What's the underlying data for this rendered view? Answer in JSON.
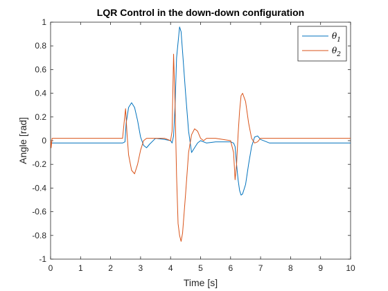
{
  "chart_data": {
    "type": "line",
    "title": "LQR Control in the down-down configuration",
    "xlabel": "Time [s]",
    "ylabel": "Angle [rad]",
    "xlim": [
      0,
      10
    ],
    "ylim": [
      -1,
      1
    ],
    "xticks": [
      0,
      1,
      2,
      3,
      4,
      5,
      6,
      7,
      8,
      9,
      10
    ],
    "xtick_labels": [
      "0",
      "1",
      "2",
      "3",
      "4",
      "5",
      "6",
      "7",
      "8",
      "9",
      "10"
    ],
    "yticks": [
      -1,
      -0.8,
      -0.6,
      -0.4,
      -0.2,
      0,
      0.2,
      0.4,
      0.6,
      0.8,
      1
    ],
    "ytick_labels": [
      "-1",
      "-0.8",
      "-0.6",
      "-0.4",
      "-0.2",
      "0",
      "0.2",
      "0.4",
      "0.6",
      "0.8",
      "1"
    ],
    "grid": false,
    "legend_position": "top-right",
    "series": [
      {
        "name": "θ1",
        "label_base": "θ",
        "label_sub": "1",
        "color": "#0072BD",
        "x": [
          0,
          0.02,
          0.3,
          1.0,
          2.0,
          2.4,
          2.48,
          2.52,
          2.6,
          2.7,
          2.8,
          2.9,
          3.0,
          3.1,
          3.2,
          3.3,
          3.5,
          3.8,
          4.0,
          4.05,
          4.1,
          4.15,
          4.2,
          4.3,
          4.35,
          4.4,
          4.5,
          4.6,
          4.7,
          4.8,
          4.9,
          5.0,
          5.2,
          5.5,
          6.0,
          6.1,
          6.15,
          6.2,
          6.25,
          6.3,
          6.35,
          6.4,
          6.5,
          6.6,
          6.7,
          6.8,
          6.9,
          7.0,
          7.3,
          8.0,
          9.0,
          10.0
        ],
        "y": [
          0.0,
          -0.02,
          -0.02,
          -0.02,
          -0.02,
          -0.02,
          -0.01,
          0.15,
          0.28,
          0.32,
          0.28,
          0.17,
          0.03,
          -0.04,
          -0.06,
          -0.03,
          0.02,
          0.01,
          0.0,
          -0.02,
          0.04,
          0.3,
          0.7,
          0.96,
          0.92,
          0.75,
          0.4,
          0.08,
          -0.1,
          -0.06,
          -0.02,
          0.0,
          -0.02,
          -0.01,
          -0.01,
          -0.02,
          -0.05,
          -0.2,
          -0.33,
          -0.42,
          -0.46,
          -0.45,
          -0.37,
          -0.2,
          -0.05,
          0.03,
          0.04,
          0.01,
          -0.02,
          -0.02,
          -0.02,
          -0.02
        ]
      },
      {
        "name": "θ2",
        "label_base": "θ",
        "label_sub": "2",
        "color": "#D95319",
        "x": [
          0,
          0.02,
          0.05,
          0.1,
          0.3,
          1.0,
          2.0,
          2.4,
          2.45,
          2.5,
          2.55,
          2.6,
          2.7,
          2.8,
          2.9,
          3.0,
          3.1,
          3.2,
          3.3,
          3.5,
          3.8,
          4.0,
          4.05,
          4.1,
          4.15,
          4.2,
          4.25,
          4.3,
          4.35,
          4.4,
          4.5,
          4.6,
          4.7,
          4.8,
          4.9,
          5.0,
          5.1,
          5.2,
          5.5,
          6.0,
          6.1,
          6.15,
          6.2,
          6.25,
          6.3,
          6.35,
          6.4,
          6.5,
          6.6,
          6.7,
          6.8,
          6.9,
          7.0,
          7.3,
          8.0,
          9.0,
          10.0
        ],
        "y": [
          0.0,
          -0.06,
          0.02,
          0.02,
          0.02,
          0.02,
          0.02,
          0.02,
          0.15,
          0.27,
          0.05,
          -0.12,
          -0.25,
          -0.28,
          -0.2,
          -0.08,
          0.0,
          0.02,
          0.02,
          0.02,
          0.02,
          0.0,
          0.08,
          0.73,
          0.3,
          -0.3,
          -0.7,
          -0.8,
          -0.85,
          -0.78,
          -0.45,
          -0.1,
          0.05,
          0.1,
          0.08,
          0.02,
          0.0,
          0.02,
          0.02,
          0.0,
          -0.1,
          -0.33,
          -0.2,
          0.05,
          0.25,
          0.38,
          0.4,
          0.33,
          0.15,
          0.02,
          -0.02,
          -0.01,
          0.02,
          0.02,
          0.02,
          0.02,
          0.02
        ]
      }
    ]
  }
}
